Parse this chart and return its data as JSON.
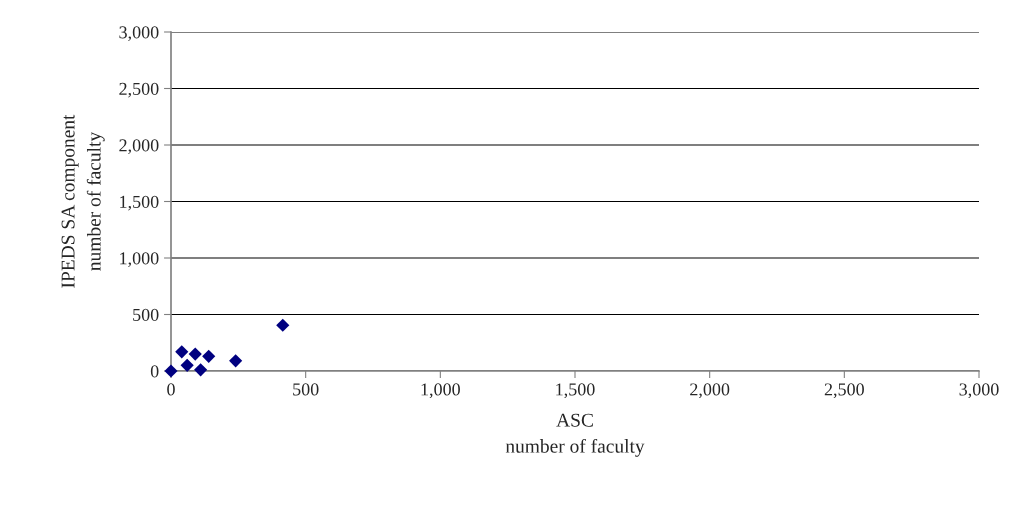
{
  "chart_data": {
    "type": "scatter",
    "xlabel": "ASC\nnumber of faculty",
    "ylabel": "IPEDS SA component\nnumber of faculty",
    "x": [
      0,
      40,
      90,
      140,
      110,
      60,
      240,
      415
    ],
    "values": [
      0,
      170,
      150,
      130,
      10,
      50,
      90,
      405
    ],
    "color": "#000080",
    "marker": "diamond",
    "xlim": [
      0,
      3000
    ],
    "ylim": [
      0,
      3000
    ],
    "xticks": [
      {
        "value": 0,
        "label": "0"
      },
      {
        "value": 500,
        "label": "500"
      },
      {
        "value": 1000,
        "label": "1,000"
      },
      {
        "value": 1500,
        "label": "1,500"
      },
      {
        "value": 2000,
        "label": "2,000"
      },
      {
        "value": 2500,
        "label": "2,500"
      },
      {
        "value": 3000,
        "label": "3,000"
      }
    ],
    "yticks": [
      {
        "value": 0,
        "label": "0"
      },
      {
        "value": 500,
        "label": "500"
      },
      {
        "value": 1000,
        "label": "1,000"
      },
      {
        "value": 1500,
        "label": "1,500"
      },
      {
        "value": 2000,
        "label": "2,000"
      },
      {
        "value": 2500,
        "label": "2,500"
      },
      {
        "value": 3000,
        "label": "3,000"
      }
    ],
    "grid": "y",
    "legend": false
  }
}
